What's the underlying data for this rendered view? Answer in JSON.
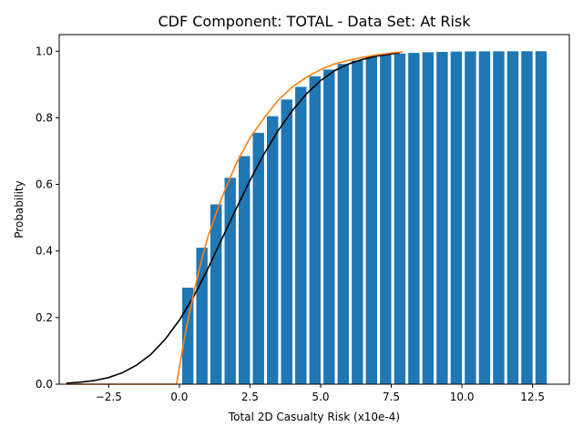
{
  "chart_data": {
    "type": "bar",
    "title": "CDF Component: TOTAL - Data Set: At Risk",
    "xlabel": "Total 2D Casualty Risk (x10e-4)",
    "ylabel": "Probability",
    "xlim": [
      -4.25,
      13.8
    ],
    "ylim": [
      0.0,
      1.05
    ],
    "xticks": [
      -2.5,
      0.0,
      2.5,
      5.0,
      7.5,
      10.0,
      12.5
    ],
    "xtick_labels": [
      "−2.5",
      "0.0",
      "2.5",
      "5.0",
      "7.5",
      "10.0",
      "12.5"
    ],
    "yticks": [
      0.0,
      0.2,
      0.4,
      0.6,
      0.8,
      1.0
    ],
    "ytick_labels": [
      "0.0",
      "0.2",
      "0.4",
      "0.6",
      "0.8",
      "1.0"
    ],
    "grid": false,
    "legend": "none",
    "bar_width": 0.4,
    "bars": {
      "color": "#1f77b4",
      "x": [
        0.3,
        0.8,
        1.3,
        1.8,
        2.3,
        2.8,
        3.3,
        3.8,
        4.3,
        4.8,
        5.3,
        5.8,
        6.3,
        6.8,
        7.3,
        7.8,
        8.3,
        8.8,
        9.3,
        9.8,
        10.3,
        10.8,
        11.3,
        11.8,
        12.3,
        12.8
      ],
      "values": [
        0.29,
        0.41,
        0.54,
        0.62,
        0.685,
        0.755,
        0.805,
        0.855,
        0.893,
        0.925,
        0.945,
        0.962,
        0.972,
        0.985,
        0.99,
        0.993,
        0.995,
        0.997,
        0.998,
        0.999,
        0.9995,
        0.9997,
        0.9998,
        0.9999,
        1.0,
        1.0
      ]
    },
    "series": [
      {
        "type": "line",
        "color": "#000000",
        "x": [
          -4.0,
          -3.5,
          -3.0,
          -2.5,
          -2.0,
          -1.5,
          -1.0,
          -0.5,
          0.0,
          0.5,
          1.0,
          1.5,
          2.0,
          2.5,
          3.0,
          3.5,
          4.0,
          4.5,
          5.0,
          5.5,
          6.0,
          6.5,
          7.0,
          7.5,
          7.8
        ],
        "y": [
          0.003,
          0.006,
          0.011,
          0.02,
          0.035,
          0.058,
          0.09,
          0.135,
          0.192,
          0.262,
          0.345,
          0.435,
          0.525,
          0.612,
          0.692,
          0.762,
          0.822,
          0.872,
          0.912,
          0.942,
          0.962,
          0.976,
          0.986,
          0.992,
          0.995
        ]
      },
      {
        "type": "line",
        "color": "#ff7f0e",
        "x": [
          -4.0,
          -0.1,
          0.0,
          0.25,
          0.5,
          0.75,
          1.0,
          1.5,
          2.0,
          2.5,
          3.0,
          3.5,
          4.0,
          4.5,
          5.0,
          5.5,
          6.0,
          6.5,
          7.0,
          7.5,
          7.9
        ],
        "y": [
          0.0,
          0.0,
          0.05,
          0.17,
          0.27,
          0.36,
          0.44,
          0.56,
          0.66,
          0.74,
          0.8,
          0.853,
          0.893,
          0.922,
          0.945,
          0.962,
          0.973,
          0.982,
          0.989,
          0.995,
          0.998
        ]
      }
    ]
  }
}
